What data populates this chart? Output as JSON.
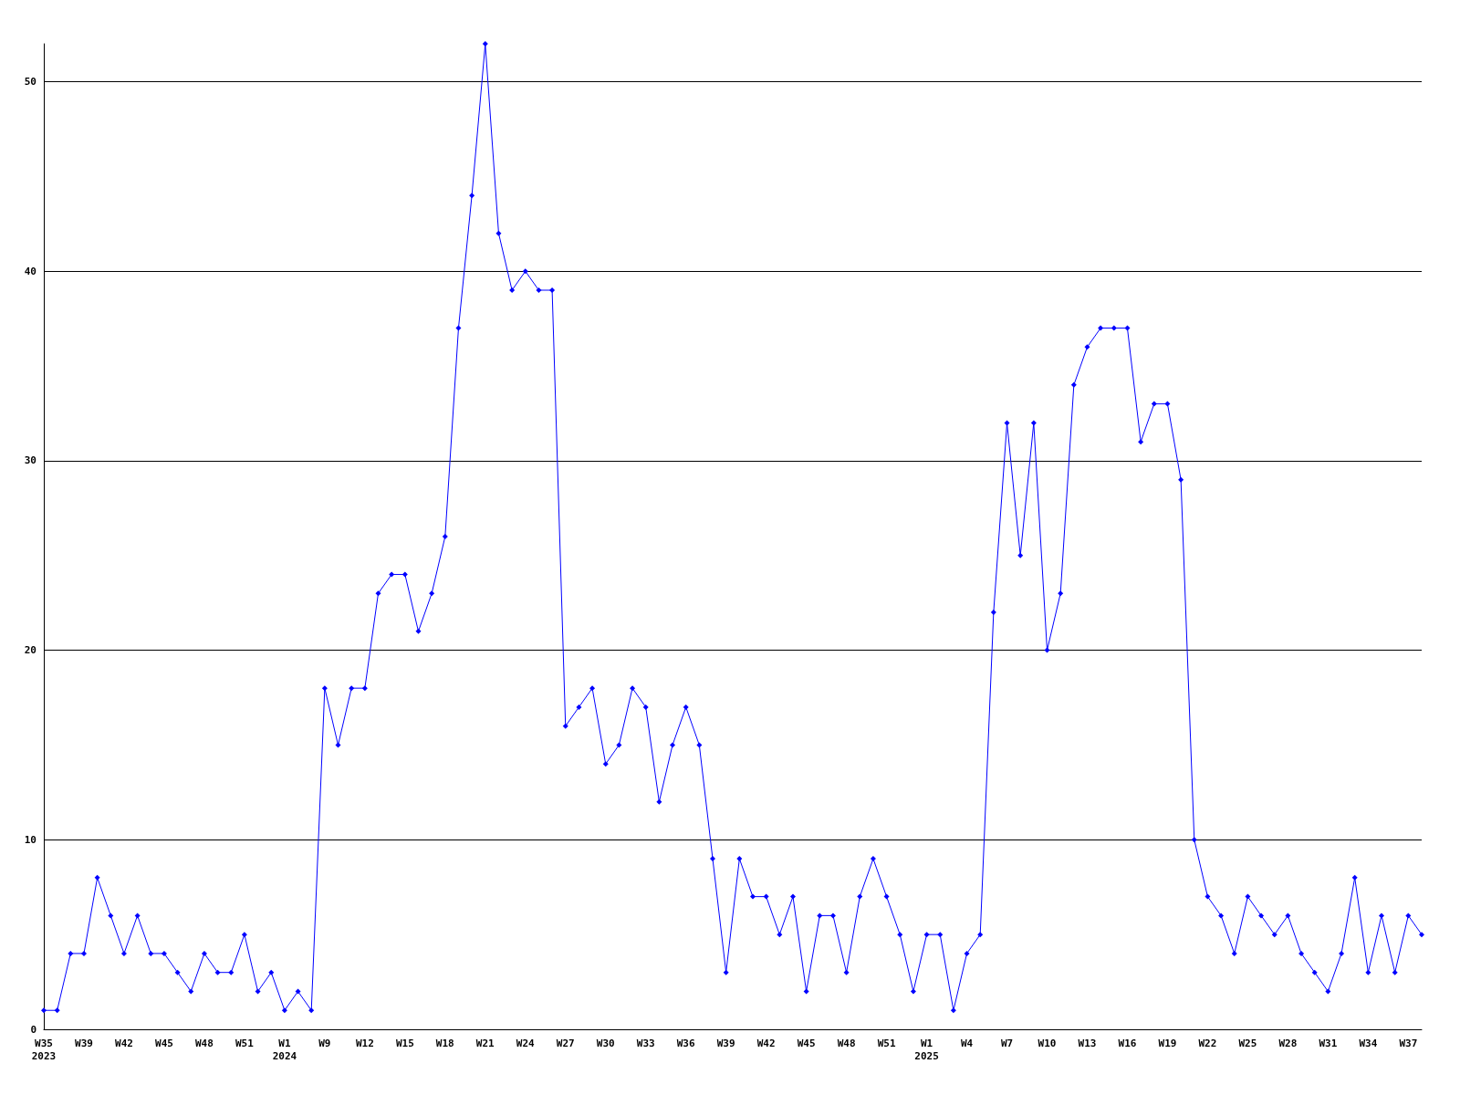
{
  "chart_data": {
    "type": "line",
    "categories": [
      "W35\n2023",
      null,
      null,
      "W39",
      null,
      null,
      "W42",
      null,
      null,
      "W45",
      null,
      null,
      "W48",
      null,
      null,
      "W51",
      null,
      null,
      "W1\n2024",
      null,
      null,
      "W9",
      null,
      null,
      "W12",
      null,
      null,
      "W15",
      null,
      null,
      "W18",
      null,
      null,
      "W21",
      null,
      null,
      "W24",
      null,
      null,
      "W27",
      null,
      null,
      "W30",
      null,
      null,
      "W33",
      null,
      null,
      "W36",
      null,
      null,
      "W39",
      null,
      null,
      "W42",
      null,
      null,
      "W45",
      null,
      null,
      "W48",
      null,
      null,
      "W51",
      null,
      null,
      "W1\n2025",
      null,
      null,
      "W4",
      null,
      null,
      "W7",
      null,
      null,
      "W10",
      null,
      null,
      "W13",
      null,
      null,
      "W16",
      null,
      null,
      "W19",
      null,
      null,
      "W22",
      null,
      null,
      "W25",
      null,
      null,
      "W28",
      null,
      null,
      "W31",
      null,
      null,
      "W34",
      null,
      null,
      "W37",
      null
    ],
    "series": [
      {
        "color": "#0000ff",
        "values": [
          1,
          1,
          4,
          4,
          8,
          6,
          4,
          6,
          4,
          4,
          3,
          2,
          4,
          3,
          3,
          5,
          2,
          3,
          1,
          2,
          1,
          18,
          15,
          18,
          18,
          23,
          24,
          24,
          21,
          23,
          26,
          37,
          44,
          52,
          42,
          39,
          40,
          39,
          39,
          16,
          17,
          18,
          14,
          15,
          18,
          17,
          12,
          15,
          17,
          15,
          9,
          3,
          9,
          7,
          7,
          5,
          7,
          2,
          6,
          6,
          3,
          7,
          9,
          7,
          5,
          2,
          5,
          5,
          1,
          4,
          5,
          22,
          32,
          25,
          32,
          20,
          23,
          34,
          36,
          37,
          37,
          37,
          31,
          33,
          33,
          29,
          10,
          7,
          6,
          4,
          7,
          6,
          5,
          6,
          4,
          3,
          2,
          4,
          8,
          3,
          6,
          3,
          6,
          5
        ]
      }
    ],
    "ylim": [
      0,
      52
    ],
    "yticks": [
      0,
      10,
      20,
      30,
      40,
      50
    ],
    "grid": "y",
    "marker": "diamond",
    "line_style": "solid"
  }
}
